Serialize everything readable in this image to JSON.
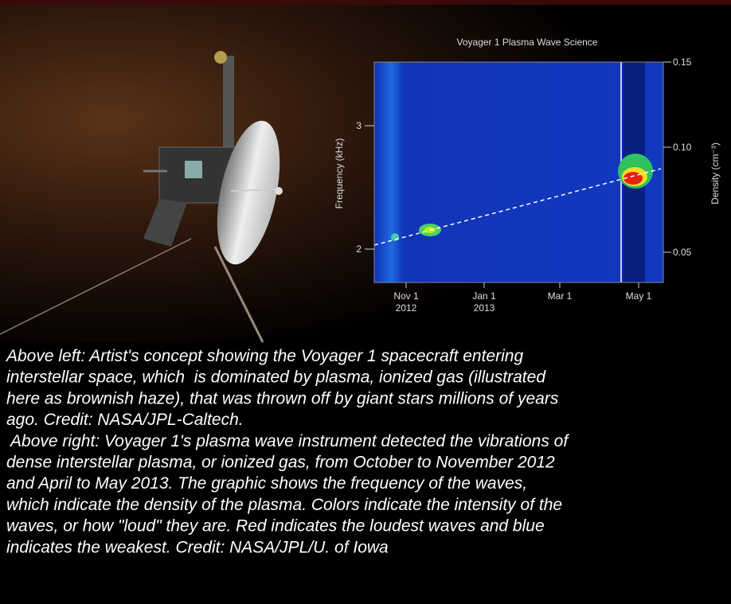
{
  "figure": {
    "title": "Voyager 1 Plasma Wave Science",
    "left_axis_label": "Frequency (kHz)",
    "right_axis_label": "Density (cm⁻³)",
    "left_ticks": [
      "3",
      "2"
    ],
    "right_ticks": [
      "0.15",
      "0.10",
      "0.05"
    ],
    "x_ticks": [
      [
        "Nov 1",
        "2012"
      ],
      [
        "Jan 1",
        "2013"
      ],
      [
        "Mar 1"
      ],
      [
        "May 1"
      ]
    ]
  },
  "caption": {
    "paragraphs": [
      [
        "Above left: Artist's concept showing the Voyager 1 spacecraft entering",
        "interstellar space, which  is dominated by plasma, ionized gas (illustrated",
        "here as brownish haze), that was thrown off by giant stars millions of years",
        "ago. Credit: NASA/JPL-Caltech."
      ],
      [
        " Above right: Voyager 1's plasma wave instrument detected the vibrations of",
        "dense interstellar plasma, or ionized gas, from October to November 2012",
        "and April to May 2013. The graphic shows the frequency of the waves,",
        "which indicate the density of the plasma. Colors indicate the intensity of the",
        "waves, or how \"loud\" they are. Red indicates the loudest waves and blue",
        "indicates the weakest. Credit: NASA/JPL/U. of Iowa"
      ]
    ]
  }
}
